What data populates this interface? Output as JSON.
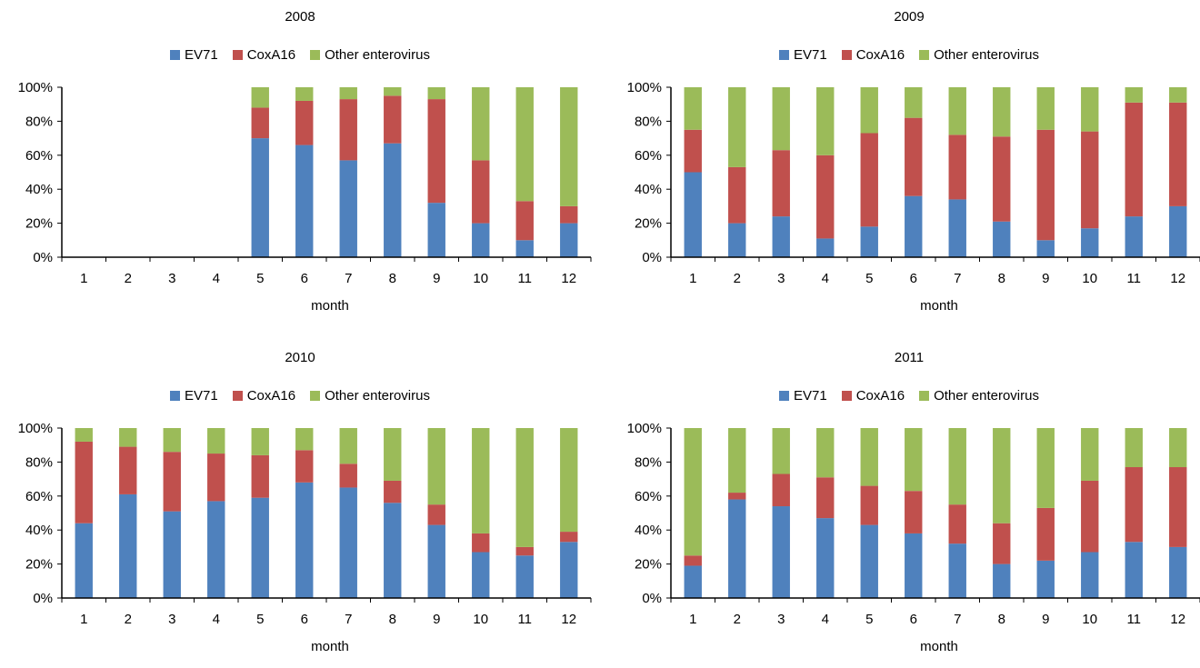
{
  "colors": {
    "EV71": "#4f81bd",
    "CoxA16": "#c0504d",
    "Other enterovirus": "#9bbb59"
  },
  "chart_data": [
    {
      "type": "bar",
      "stacked": true,
      "title": "2008",
      "xlabel": "month",
      "ylabel": "",
      "ylim": [
        0,
        100
      ],
      "yticks": [
        "0%",
        "20%",
        "40%",
        "60%",
        "80%",
        "100%"
      ],
      "legend_position": "top",
      "categories": [
        "1",
        "2",
        "3",
        "4",
        "5",
        "6",
        "7",
        "8",
        "9",
        "10",
        "11",
        "12"
      ],
      "series": [
        {
          "name": "EV71",
          "values": [
            0,
            0,
            0,
            0,
            70,
            66,
            57,
            67,
            32,
            20,
            10,
            20
          ]
        },
        {
          "name": "CoxA16",
          "values": [
            0,
            0,
            0,
            0,
            18,
            26,
            36,
            28,
            61,
            37,
            23,
            10
          ]
        },
        {
          "name": "Other enterovirus",
          "values": [
            0,
            0,
            0,
            0,
            12,
            8,
            7,
            5,
            7,
            43,
            67,
            70
          ]
        }
      ]
    },
    {
      "type": "bar",
      "stacked": true,
      "title": "2009",
      "xlabel": "month",
      "ylabel": "",
      "ylim": [
        0,
        100
      ],
      "yticks": [
        "0%",
        "20%",
        "40%",
        "60%",
        "80%",
        "100%"
      ],
      "legend_position": "top",
      "categories": [
        "1",
        "2",
        "3",
        "4",
        "5",
        "6",
        "7",
        "8",
        "9",
        "10",
        "11",
        "12"
      ],
      "series": [
        {
          "name": "EV71",
          "values": [
            50,
            20,
            24,
            11,
            18,
            36,
            34,
            21,
            10,
            17,
            24,
            30
          ]
        },
        {
          "name": "CoxA16",
          "values": [
            25,
            33,
            39,
            49,
            55,
            46,
            38,
            50,
            65,
            57,
            67,
            61
          ]
        },
        {
          "name": "Other enterovirus",
          "values": [
            25,
            47,
            37,
            40,
            27,
            18,
            28,
            29,
            25,
            26,
            9,
            9
          ]
        }
      ]
    },
    {
      "type": "bar",
      "stacked": true,
      "title": "2010",
      "xlabel": "month",
      "ylabel": "",
      "ylim": [
        0,
        100
      ],
      "yticks": [
        "0%",
        "20%",
        "40%",
        "60%",
        "80%",
        "100%"
      ],
      "legend_position": "top",
      "categories": [
        "1",
        "2",
        "3",
        "4",
        "5",
        "6",
        "7",
        "8",
        "9",
        "10",
        "11",
        "12"
      ],
      "series": [
        {
          "name": "EV71",
          "values": [
            44,
            61,
            51,
            57,
            59,
            68,
            65,
            56,
            43,
            27,
            25,
            33
          ]
        },
        {
          "name": "CoxA16",
          "values": [
            48,
            28,
            35,
            28,
            25,
            19,
            14,
            13,
            12,
            11,
            5,
            6
          ]
        },
        {
          "name": "Other enterovirus",
          "values": [
            8,
            11,
            14,
            15,
            16,
            13,
            21,
            31,
            45,
            62,
            70,
            61
          ]
        }
      ]
    },
    {
      "type": "bar",
      "stacked": true,
      "title": "2011",
      "xlabel": "month",
      "ylabel": "",
      "ylim": [
        0,
        100
      ],
      "yticks": [
        "0%",
        "20%",
        "40%",
        "60%",
        "80%",
        "100%"
      ],
      "legend_position": "top",
      "categories": [
        "1",
        "2",
        "3",
        "4",
        "5",
        "6",
        "7",
        "8",
        "9",
        "10",
        "11",
        "12"
      ],
      "series": [
        {
          "name": "EV71",
          "values": [
            19,
            58,
            54,
            47,
            43,
            38,
            32,
            20,
            22,
            27,
            33,
            30
          ]
        },
        {
          "name": "CoxA16",
          "values": [
            6,
            4,
            19,
            24,
            23,
            25,
            23,
            24,
            31,
            42,
            44,
            47
          ]
        },
        {
          "name": "Other enterovirus",
          "values": [
            75,
            38,
            27,
            29,
            34,
            37,
            45,
            56,
            47,
            31,
            23,
            23
          ]
        }
      ]
    }
  ]
}
